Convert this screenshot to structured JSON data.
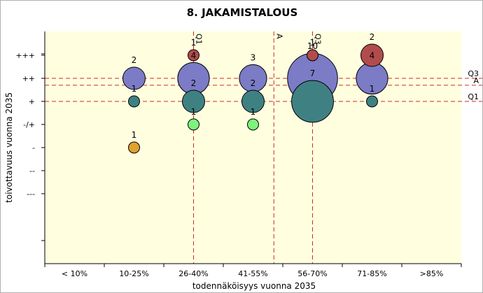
{
  "chart_data": {
    "type": "bubble",
    "title": "8. JAKAMISTALOUS",
    "xlabel": "todennäköisyys vuonna 2035",
    "ylabel": "toivottavuus vuonna 2035",
    "x_categories": [
      "< 10%",
      "10-25%",
      "26-40%",
      "41-55%",
      "56-70%",
      "71-85%",
      ">85%"
    ],
    "y_categories": [
      "---",
      "--",
      "-",
      "-/+",
      "+",
      "++",
      "+++"
    ],
    "colors": {
      "blue": "#7b7bc6",
      "teal": "#3f8182",
      "red": "#b24c4c",
      "green": "#7df27d",
      "orange": "#e0a12f",
      "plot_bg": "#ffffdf",
      "ref_line": "#cc2a2a"
    },
    "bubbles": [
      {
        "x": "10-25%",
        "y": "++",
        "count": 2,
        "color": "blue"
      },
      {
        "x": "10-25%",
        "y": "+",
        "count": 1,
        "color": "teal"
      },
      {
        "x": "10-25%",
        "y": "-",
        "count": 1,
        "color": "orange"
      },
      {
        "x": "26-40%",
        "y": "+++",
        "count": 1,
        "color": "red"
      },
      {
        "x": "26-40%",
        "y": "++",
        "count": 4,
        "color": "blue"
      },
      {
        "x": "26-40%",
        "y": "+",
        "count": 2,
        "color": "teal"
      },
      {
        "x": "26-40%",
        "y": "-/+",
        "count": 1,
        "color": "green"
      },
      {
        "x": "41-55%",
        "y": "++",
        "count": 3,
        "color": "blue"
      },
      {
        "x": "41-55%",
        "y": "+",
        "count": 2,
        "color": "teal"
      },
      {
        "x": "41-55%",
        "y": "-/+",
        "count": 1,
        "color": "green"
      },
      {
        "x": "56-70%",
        "y": "++",
        "count": 10,
        "color": "blue"
      },
      {
        "x": "56-70%",
        "y": "+",
        "count": 7,
        "color": "teal"
      },
      {
        "x": "56-70%",
        "y": "+++",
        "count": 1,
        "color": "red"
      },
      {
        "x": "71-85%",
        "y": "+++",
        "count": 2,
        "color": "red"
      },
      {
        "x": "71-85%",
        "y": "++",
        "count": 4,
        "color": "blue"
      },
      {
        "x": "71-85%",
        "y": "+",
        "count": 1,
        "color": "teal"
      }
    ],
    "reference_lines": {
      "vertical": [
        {
          "label": "Q1",
          "value": 2.0
        },
        {
          "label": "A",
          "value": 3.35
        },
        {
          "label": "Q3",
          "value": 4.0
        }
      ],
      "horizontal": [
        {
          "label": "Q3",
          "value": 5.0
        },
        {
          "label": "A",
          "value": 4.7
        },
        {
          "label": "Q1",
          "value": 4.0
        }
      ]
    }
  }
}
